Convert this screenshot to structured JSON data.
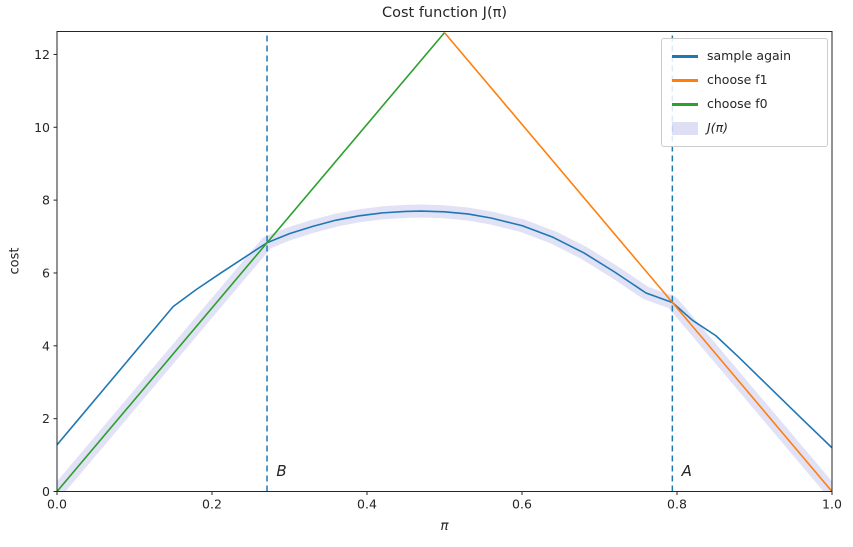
{
  "figure": {
    "title": "Cost function J(π)",
    "xlabel": "π",
    "ylabel": "cost"
  },
  "legend": {
    "position": "upper right",
    "items": [
      {
        "label": "sample again",
        "type": "line",
        "color": "#1f77b4"
      },
      {
        "label": "choose f1",
        "type": "line",
        "color": "#ff7f0e"
      },
      {
        "label": "choose f0",
        "type": "line",
        "color": "#2ca02c"
      },
      {
        "label": "J(π)",
        "type": "patch",
        "color": "rgba(123,123,216,0.25)"
      }
    ]
  },
  "chart_data": {
    "type": "line",
    "title": "Cost function J(π)",
    "xlabel": "π",
    "ylabel": "cost",
    "xlim": [
      0.0,
      1.0
    ],
    "ylim": [
      0.0,
      12.63
    ],
    "xticks": [
      0.0,
      0.2,
      0.4,
      0.6,
      0.8,
      1.0
    ],
    "xtick_labels": [
      "0.0",
      "0.2",
      "0.4",
      "0.6",
      "0.8",
      "1.0"
    ],
    "yticks": [
      0,
      2,
      4,
      6,
      8,
      10,
      12
    ],
    "ytick_labels": [
      "0",
      "2",
      "4",
      "6",
      "8",
      "10",
      "12"
    ],
    "grid": false,
    "legend_position": "upper right",
    "series": [
      {
        "name": "sample again",
        "color": "#1f77b4",
        "style": "solid",
        "x": [
          0.0,
          0.03,
          0.06,
          0.09,
          0.12,
          0.15,
          0.18,
          0.21,
          0.24,
          0.271,
          0.3,
          0.33,
          0.36,
          0.39,
          0.42,
          0.45,
          0.47,
          0.5,
          0.53,
          0.56,
          0.6,
          0.64,
          0.68,
          0.72,
          0.76,
          0.794,
          0.82,
          0.85,
          0.88,
          0.92,
          0.96,
          1.0
        ],
        "y": [
          1.28,
          2.04,
          2.8,
          3.56,
          4.32,
          5.08,
          5.55,
          5.98,
          6.4,
          6.83,
          7.08,
          7.28,
          7.45,
          7.57,
          7.65,
          7.69,
          7.7,
          7.68,
          7.62,
          7.51,
          7.3,
          6.98,
          6.55,
          6.02,
          5.45,
          5.19,
          4.7,
          4.28,
          3.68,
          2.85,
          2.02,
          1.2
        ]
      },
      {
        "name": "choose f1",
        "color": "#ff7f0e",
        "style": "solid",
        "x": [
          0.5,
          1.0
        ],
        "y": [
          12.6,
          0.0
        ]
      },
      {
        "name": "choose f0",
        "color": "#2ca02c",
        "style": "solid",
        "x": [
          0.0,
          0.5
        ],
        "y": [
          0.0,
          12.6
        ]
      }
    ],
    "band": {
      "name": "J(π)",
      "color": "#7b7bd8",
      "opacity": 0.22,
      "stroke_width": 13,
      "description": "J(π) = min(choose f0, sample again, choose f1)",
      "x": [
        0.0,
        0.271,
        0.3,
        0.33,
        0.36,
        0.39,
        0.42,
        0.45,
        0.47,
        0.5,
        0.53,
        0.56,
        0.6,
        0.64,
        0.68,
        0.72,
        0.76,
        0.794,
        1.0
      ],
      "y": [
        0.0,
        6.83,
        7.08,
        7.28,
        7.45,
        7.57,
        7.65,
        7.69,
        7.7,
        7.68,
        7.62,
        7.51,
        7.3,
        6.98,
        6.55,
        6.02,
        5.45,
        5.19,
        0.0
      ]
    },
    "vlines": [
      {
        "x": 0.271,
        "label": "B",
        "color": "#1f77b4",
        "style": "dashed"
      },
      {
        "x": 0.794,
        "label": "A",
        "color": "#1f77b4",
        "style": "dashed"
      }
    ],
    "annotations": [
      {
        "text": "B",
        "x": 0.283,
        "y": 0.42
      },
      {
        "text": "A",
        "x": 0.806,
        "y": 0.42
      }
    ]
  }
}
